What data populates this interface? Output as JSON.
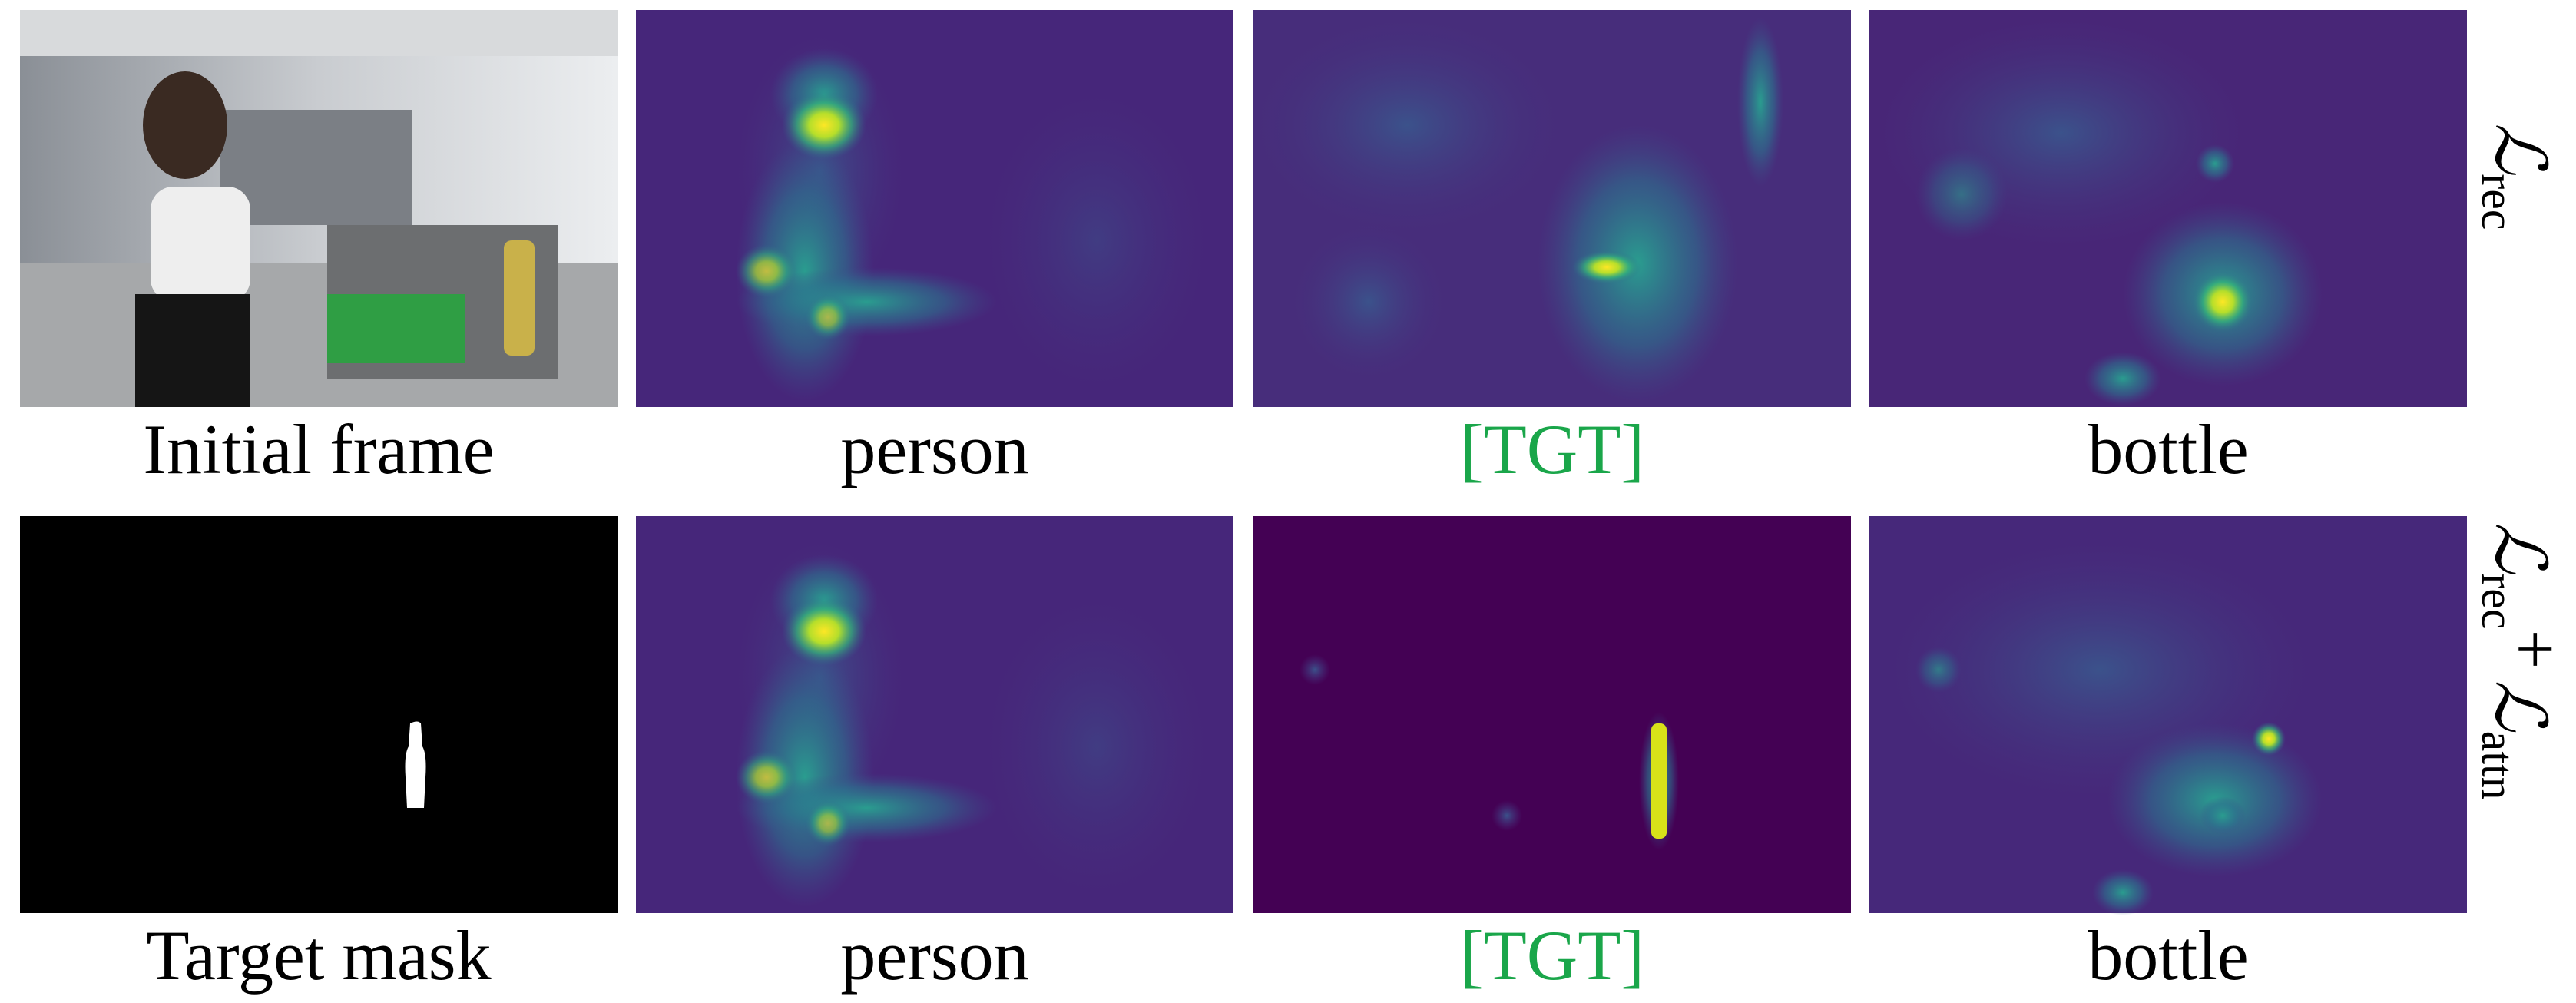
{
  "rows": [
    {
      "label": [
        {
          "symbol": "ℒ",
          "subscript": "rec"
        }
      ],
      "panels": [
        {
          "caption": "Initial frame"
        },
        {
          "caption": "person"
        },
        {
          "caption": "[TGT]"
        },
        {
          "caption": "bottle"
        }
      ]
    },
    {
      "label": [
        {
          "symbol": "ℒ",
          "subscript": "rec"
        },
        {
          "symbol": "+"
        },
        {
          "symbol": "ℒ",
          "subscript": "attn"
        }
      ],
      "panels": [
        {
          "caption": "Target mask"
        },
        {
          "caption": "person"
        },
        {
          "caption": "[TGT]"
        },
        {
          "caption": "bottle"
        }
      ]
    }
  ]
}
